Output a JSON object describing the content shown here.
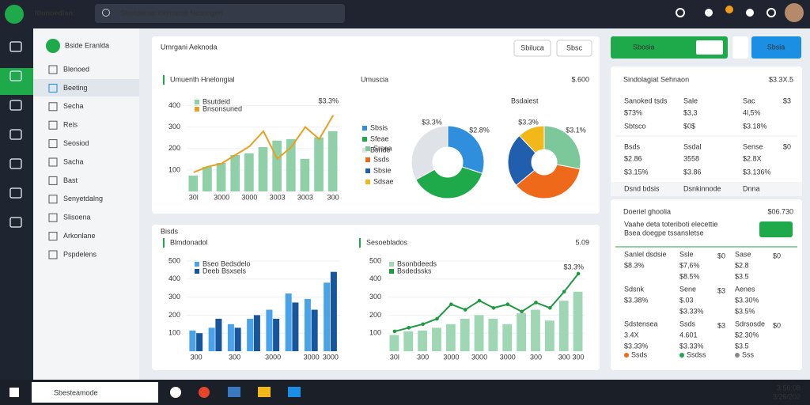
{
  "topbar": {
    "app": "Itlonoedian:",
    "search": "Slsetdemar klehsenie Nesongetl"
  },
  "sidebar": {
    "header": "Bside Eranlda",
    "items": [
      "Blenoed",
      "Beeting",
      "Secha",
      "Reis",
      "Seosiod",
      "Sacha",
      "Bast",
      "Senyetdalng",
      "Slisoena",
      "Arkonlane",
      "Pspdelens"
    ]
  },
  "panel_top": {
    "title": "Umrgani Aeknoda",
    "buttons": [
      "Sbiluca",
      "Sbsc"
    ]
  },
  "panel_bottom": {
    "label": "Bisds"
  },
  "actions": {
    "primary": "Sbosia",
    "secondary": "Sbsia"
  },
  "chart_data": [
    {
      "type": "combo",
      "title": "Umuenth Hnelongial",
      "annotation": "$3.3%",
      "categories": [
        "30l",
        null,
        "3000",
        null,
        "3000",
        null,
        "3003",
        null,
        "3003",
        null,
        "300"
      ],
      "series": [
        {
          "name": "Bsutdeid",
          "kind": "bar",
          "color": "#8fd0a8",
          "values": [
            74,
            115,
            133,
            170,
            178,
            207,
            237,
            244,
            152,
            252,
            281
          ]
        },
        {
          "name": "Bnsonsuned",
          "kind": "line",
          "color": "#e8a020",
          "values": [
            89,
            115,
            130,
            170,
            210,
            281,
            152,
            207,
            300,
            244,
            355
          ]
        }
      ],
      "ylim": [
        0,
        450
      ],
      "yticks": [
        100,
        200,
        300,
        400
      ],
      "grid": true
    },
    {
      "type": "donut",
      "title": "Umuscia",
      "total": "$.600",
      "categories": [
        "Sbsis",
        "Sfeae",
        "Bsnde"
      ],
      "values": [
        30,
        37,
        33
      ],
      "colors": [
        "#2f8fdc",
        "#1eaa4a",
        "#dfe3e7"
      ],
      "annotations": [
        "$3.3%",
        "$2.8%"
      ]
    },
    {
      "type": "donut",
      "title": "Bsdaiest",
      "categories": [
        "Srsea",
        "Ssds",
        "Sbsie",
        "Sdsae"
      ],
      "values": [
        28,
        36,
        24,
        12
      ],
      "colors": [
        "#7cc89a",
        "#ee6a1a",
        "#1f5fae",
        "#f2b81a"
      ],
      "annotations": [
        "$3.3%",
        "$3.1%"
      ]
    },
    {
      "type": "combo",
      "title": "Blmdonadol",
      "categories": [
        "300",
        null,
        "300",
        null,
        "3000",
        null,
        "3000",
        "3000"
      ],
      "series": [
        {
          "name": "Bseo Bedsdelo",
          "kind": "bar",
          "color": "#4aa3e8",
          "values": [
            115,
            130,
            150,
            180,
            230,
            320,
            290,
            380
          ]
        },
        {
          "name": "Deeb Bsxsels",
          "kind": "bar",
          "color": "#17569c",
          "values": [
            100,
            180,
            130,
            200,
            180,
            270,
            230,
            440
          ]
        }
      ],
      "ylim": [
        0,
        500
      ],
      "yticks": [
        100,
        200,
        300,
        400,
        500
      ],
      "grid": true
    },
    {
      "type": "combo",
      "title": "Sesoeblados",
      "total": "5.09",
      "annotation": "$3.3%",
      "categories": [
        "30l",
        null,
        "300",
        null,
        "3000",
        null,
        "3000",
        null,
        "3000",
        null,
        "300",
        null,
        "300",
        "300"
      ],
      "series": [
        {
          "name": "Bsonbdeeds",
          "kind": "bar",
          "color": "#9fd6b4",
          "values": [
            90,
            110,
            115,
            130,
            150,
            180,
            200,
            180,
            150,
            210,
            230,
            170,
            280,
            330
          ]
        },
        {
          "name": "Bsdedssks",
          "kind": "line",
          "color": "#1e9a40",
          "values": [
            110,
            130,
            150,
            180,
            260,
            230,
            280,
            240,
            260,
            220,
            270,
            240,
            330,
            430
          ]
        }
      ],
      "ylim": [
        0,
        500
      ],
      "yticks": [
        100,
        200,
        300,
        400,
        500
      ],
      "grid": true
    }
  ],
  "stats_top": {
    "title": "Sindolagiat Sehnaon",
    "total": "$3.3X.5",
    "cells": [
      {
        "label": "Sanoked tsds",
        "value": "$73%",
        "sub": "Sbtsco",
        "color": "#1eaa4a"
      },
      {
        "label": "Sale",
        "value": "$3,3",
        "sub": "$0$",
        "color": "#166b34"
      },
      {
        "label": "Sac",
        "value": "4l,5%",
        "sub": "$3.18%",
        "corner": "$3",
        "color": "#ee6a1a"
      },
      {
        "label": "Bsds",
        "value": "$2.86",
        "sub": "$3.15%",
        "color": "#222"
      },
      {
        "label": "Ssdal",
        "value": "3558",
        "sub": "$3.86",
        "color": "#222"
      },
      {
        "label": "Sense",
        "value": "$2.8X",
        "sub": "$3.136%",
        "corner": "$0",
        "color": "#222"
      }
    ],
    "footer": [
      "Dsnd bdsis",
      "Dsnkinnode",
      "Dnna"
    ]
  },
  "stats_bottom": {
    "title": "Doeriel ghoolia",
    "total": "$06.730",
    "desc": [
      "Vaahe deta toteriboti elecettie",
      "Bsea doegpe tssansletse"
    ],
    "cells": [
      {
        "label": "Sanlel dsdsie",
        "value": "$8.3%",
        "side": "",
        "color": "#ee6a1a"
      },
      {
        "label": "Ssle",
        "value": "$7,6%",
        "sub": "$8.5%",
        "side": "$0",
        "color": "#1eaa4a"
      },
      {
        "label": "Sase",
        "value": "$2.8",
        "sub": "$3.5",
        "side": "$0",
        "color": "#222"
      },
      {
        "label": "Sdsnk",
        "value": "$3.38%",
        "color": "#222"
      },
      {
        "label": "Sene",
        "value": "$.03",
        "sub": "$3.33%",
        "side": "$3",
        "color": "#1eaa4a"
      },
      {
        "label": "Aenes",
        "value": "$3.30%",
        "sub": "$3.5%",
        "color": "#222"
      },
      {
        "label": "Sdstensea",
        "value": "3.4X",
        "sub": "$3.33%",
        "color": "#222"
      },
      {
        "label": "Ssds",
        "value": "4.601",
        "sub": "$3.33%",
        "side": "$3",
        "color": "#222"
      },
      {
        "label": "Sdrsosde",
        "value": "$2.30%",
        "sub": "$3.5",
        "side": "$0",
        "color": "#222"
      }
    ],
    "footer": [
      "Ssds",
      "Ssdss",
      "Sss"
    ]
  },
  "taskbar": {
    "search": "Sbesteamode",
    "clock": [
      "3:56:08",
      "3/26/202"
    ]
  }
}
